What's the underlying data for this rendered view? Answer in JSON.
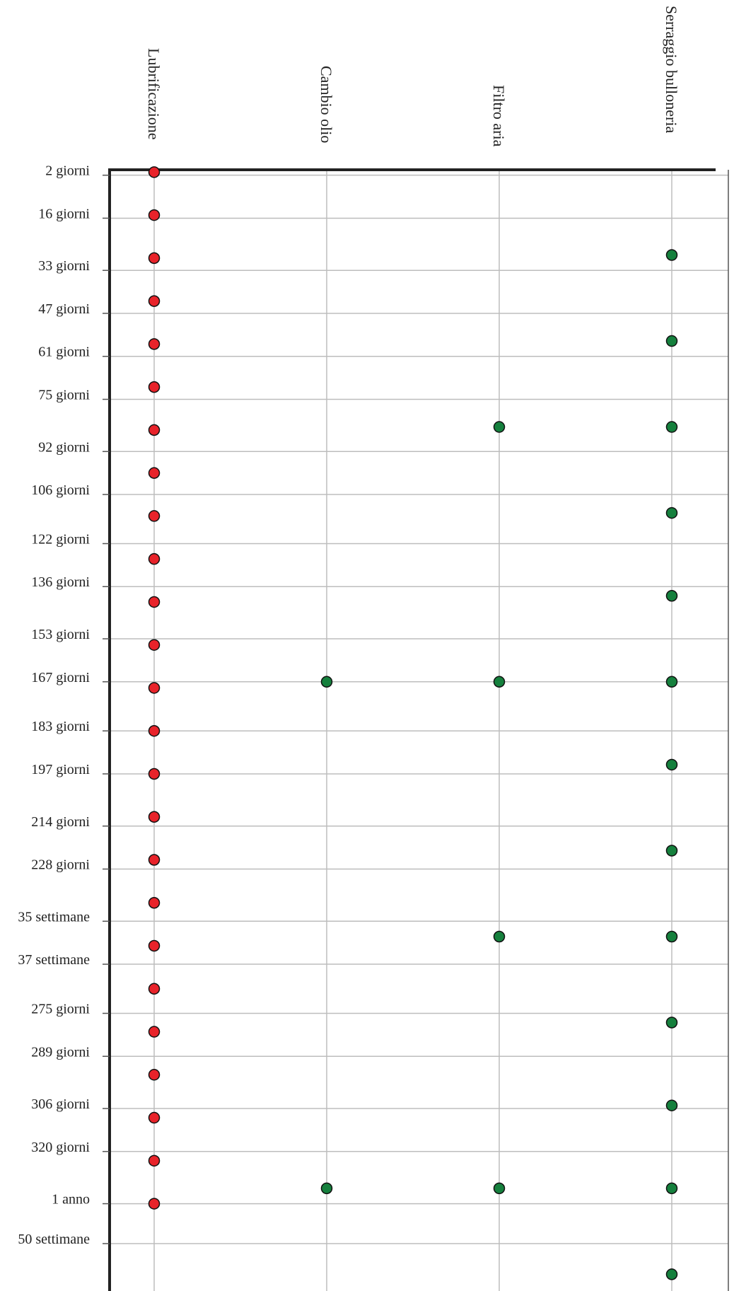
{
  "chart_data": {
    "type": "scatter",
    "columns": [
      "Lubrificazione",
      "Cambio olio",
      "Filtro aria",
      "Serraggio bulloneria"
    ],
    "y_ticks": [
      "2 giorni",
      "16 giorni",
      "33 giorni",
      "47 giorni",
      "61 giorni",
      "75 giorni",
      "92 giorni",
      "106 giorni",
      "122 giorni",
      "136 giorni",
      "153 giorni",
      "167 giorni",
      "183 giorni",
      "197 giorni",
      "214 giorni",
      "228 giorni",
      "35 settimane",
      "37 settimane",
      "275 giorni",
      "289 giorni",
      "306 giorni",
      "320 giorni",
      "1 anno",
      "50 settimane"
    ],
    "y_tick_days": [
      2,
      16,
      33,
      47,
      61,
      75,
      92,
      106,
      122,
      136,
      153,
      167,
      183,
      197,
      214,
      228,
      245,
      259,
      275,
      289,
      306,
      320,
      337,
      350
    ],
    "series": [
      {
        "column": "Lubrificazione",
        "color": "#e8232a",
        "y_days": [
          1,
          15,
          29,
          43,
          57,
          71,
          85,
          99,
          113,
          127,
          141,
          155,
          169,
          183,
          197,
          211,
          225,
          239,
          253,
          267,
          281,
          295,
          309,
          323,
          337
        ]
      },
      {
        "column": "Cambio olio",
        "color": "#15803d",
        "y_days": [
          167,
          332
        ]
      },
      {
        "column": "Filtro aria",
        "color": "#15803d",
        "y_days": [
          84,
          167,
          250,
          332
        ]
      },
      {
        "column": "Serraggio bulloneria",
        "color": "#15803d",
        "y_days": [
          28,
          56,
          84,
          112,
          139,
          167,
          194,
          222,
          250,
          278,
          305,
          332,
          360
        ]
      }
    ],
    "y_range_days": [
      2,
      350
    ],
    "grid": true,
    "legend": "none"
  }
}
